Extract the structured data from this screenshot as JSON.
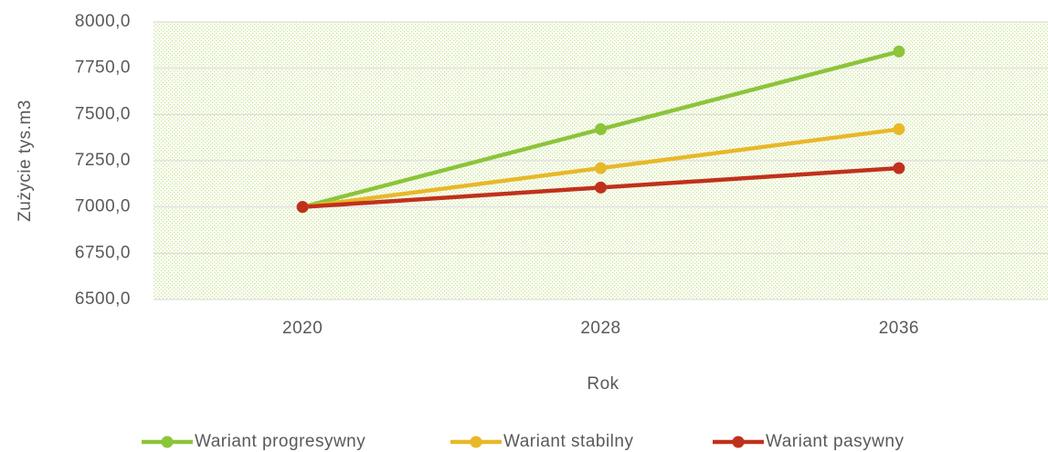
{
  "chart_data": {
    "type": "line",
    "x_label": "Rok",
    "y_label": "Zużycie tys.m3",
    "categories": [
      "2020",
      "2028",
      "2036"
    ],
    "series": [
      {
        "name": "Wariant progresywny",
        "color": "#8cc43a",
        "values": [
          7000,
          7420,
          7840
        ]
      },
      {
        "name": "Wariant stabilny",
        "color": "#e8b829",
        "values": [
          7000,
          7210,
          7420
        ]
      },
      {
        "name": "Wariant pasywny",
        "color": "#c0311c",
        "values": [
          7000,
          7105,
          7210
        ]
      }
    ],
    "ylim": [
      6500,
      8000
    ],
    "yticks": [
      {
        "value": 6500,
        "label": "6500,0"
      },
      {
        "value": 6750,
        "label": "6750,0"
      },
      {
        "value": 7000,
        "label": "7000,0"
      },
      {
        "value": 7250,
        "label": "7250,0"
      },
      {
        "value": 7500,
        "label": "7500,0"
      },
      {
        "value": 7750,
        "label": "7750,0"
      },
      {
        "value": 8000,
        "label": "8000,0"
      }
    ],
    "grid": true,
    "legend": "bottom"
  }
}
